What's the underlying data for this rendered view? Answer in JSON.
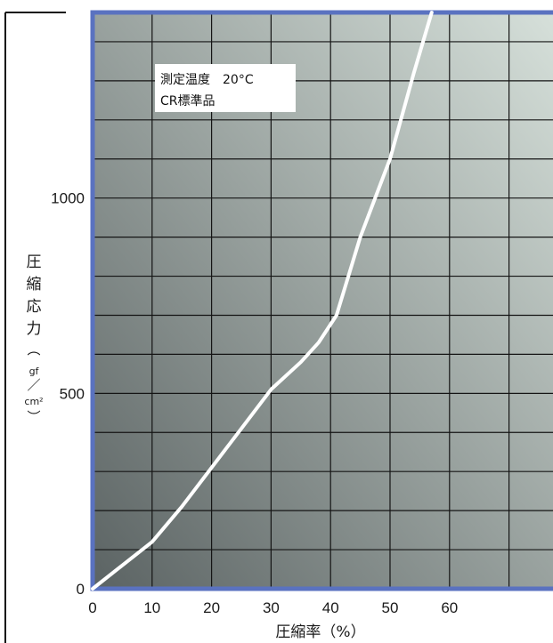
{
  "chart_data": {
    "type": "line",
    "title": "",
    "xlabel": "圧縮率（%）",
    "ylabel": [
      "圧",
      "縮",
      "応",
      "力",
      "︵",
      "gf",
      "／",
      "cm²",
      "︶"
    ],
    "x_ticks": [
      "0",
      "10",
      "20",
      "30",
      "40",
      "50",
      "60"
    ],
    "y_ticks": [
      "0",
      "500",
      "1000"
    ],
    "xlim": [
      0,
      78
    ],
    "ylim": [
      0,
      1475
    ],
    "grid": true,
    "annotation": {
      "line1": "測定温度　20°C",
      "line2": "CR標準品"
    },
    "series": [
      {
        "x": [
          0,
          10,
          15,
          20,
          25,
          30,
          35,
          38,
          41,
          45,
          50,
          54,
          57
        ],
        "y": [
          0,
          120,
          210,
          310,
          410,
          510,
          580,
          630,
          700,
          900,
          1100,
          1320,
          1475
        ]
      }
    ],
    "colors": {
      "line": "#ffffff",
      "frame": "#5a72c0",
      "grid": "#141414",
      "plot_dark": "#5b6363",
      "plot_light": "#d6e0da"
    }
  }
}
